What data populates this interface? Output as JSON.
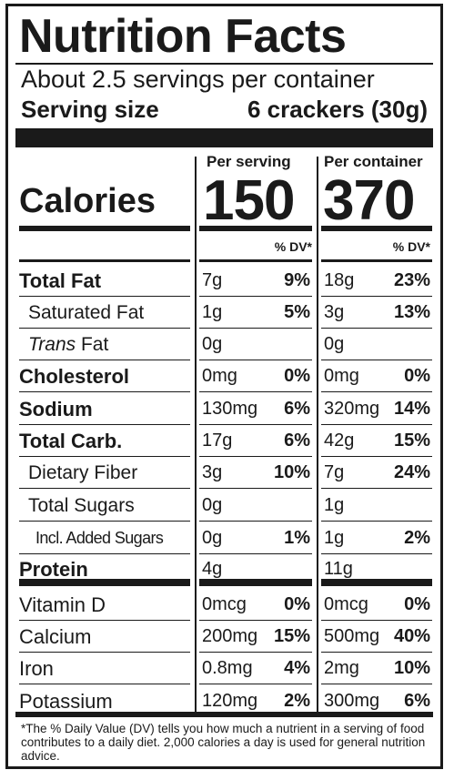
{
  "title": "Nutrition Facts",
  "servings_per_container": "About 2.5 servings per container",
  "serving_size_label": "Serving size",
  "serving_size_value": "6 crackers (30g)",
  "col_per_serving": "Per serving",
  "col_per_container": "Per container",
  "calories_label": "Calories",
  "calories_per_serving": "150",
  "calories_per_container": "370",
  "dv_header": "% DV*",
  "nutrients": [
    {
      "name": "Total Fat",
      "bold": true,
      "indent": 0,
      "serv_amt": "7g",
      "serv_dv": "9%",
      "cont_amt": "18g",
      "cont_dv": "23%"
    },
    {
      "name": "Saturated Fat",
      "bold": false,
      "indent": 1,
      "serv_amt": "1g",
      "serv_dv": "5%",
      "cont_amt": "3g",
      "cont_dv": "13%"
    },
    {
      "name_italic": "Trans",
      "name": " Fat",
      "bold": false,
      "indent": 1,
      "serv_amt": "0g",
      "serv_dv": "",
      "cont_amt": "0g",
      "cont_dv": ""
    },
    {
      "name": "Cholesterol",
      "bold": true,
      "indent": 0,
      "serv_amt": "0mg",
      "serv_dv": "0%",
      "cont_amt": "0mg",
      "cont_dv": "0%"
    },
    {
      "name": "Sodium",
      "bold": true,
      "indent": 0,
      "serv_amt": "130mg",
      "serv_dv": "6%",
      "cont_amt": "320mg",
      "cont_dv": "14%"
    },
    {
      "name": "Total Carb.",
      "bold": true,
      "indent": 0,
      "serv_amt": "17g",
      "serv_dv": "6%",
      "cont_amt": "42g",
      "cont_dv": "15%"
    },
    {
      "name": "Dietary Fiber",
      "bold": false,
      "indent": 1,
      "serv_amt": "3g",
      "serv_dv": "10%",
      "cont_amt": "7g",
      "cont_dv": "24%"
    },
    {
      "name": "Total Sugars",
      "bold": false,
      "indent": 1,
      "serv_amt": "0g",
      "serv_dv": "",
      "cont_amt": "1g",
      "cont_dv": ""
    },
    {
      "name": "Incl. Added Sugars",
      "bold": false,
      "indent": 2,
      "serv_amt": "0g",
      "serv_dv": "1%",
      "cont_amt": "1g",
      "cont_dv": "2%"
    },
    {
      "name": "Protein",
      "bold": true,
      "indent": 0,
      "serv_amt": "4g",
      "serv_dv": "",
      "cont_amt": "11g",
      "cont_dv": ""
    },
    {
      "name": "Vitamin D",
      "bold": false,
      "indent": 0,
      "serv_amt": "0mcg",
      "serv_dv": "0%",
      "cont_amt": "0mcg",
      "cont_dv": "0%"
    },
    {
      "name": "Calcium",
      "bold": false,
      "indent": 0,
      "serv_amt": "200mg",
      "serv_dv": "15%",
      "cont_amt": "500mg",
      "cont_dv": "40%"
    },
    {
      "name": "Iron",
      "bold": false,
      "indent": 0,
      "serv_amt": "0.8mg",
      "serv_dv": "4%",
      "cont_amt": "2mg",
      "cont_dv": "10%"
    },
    {
      "name": "Potassium",
      "bold": false,
      "indent": 0,
      "serv_amt": "120mg",
      "serv_dv": "2%",
      "cont_amt": "300mg",
      "cont_dv": "6%"
    }
  ],
  "footnote": "*The % Daily Value (DV) tells you how much a nutrient in a serving of food contributes to a daily diet. 2,000 calories a day is used for general nutrition advice."
}
